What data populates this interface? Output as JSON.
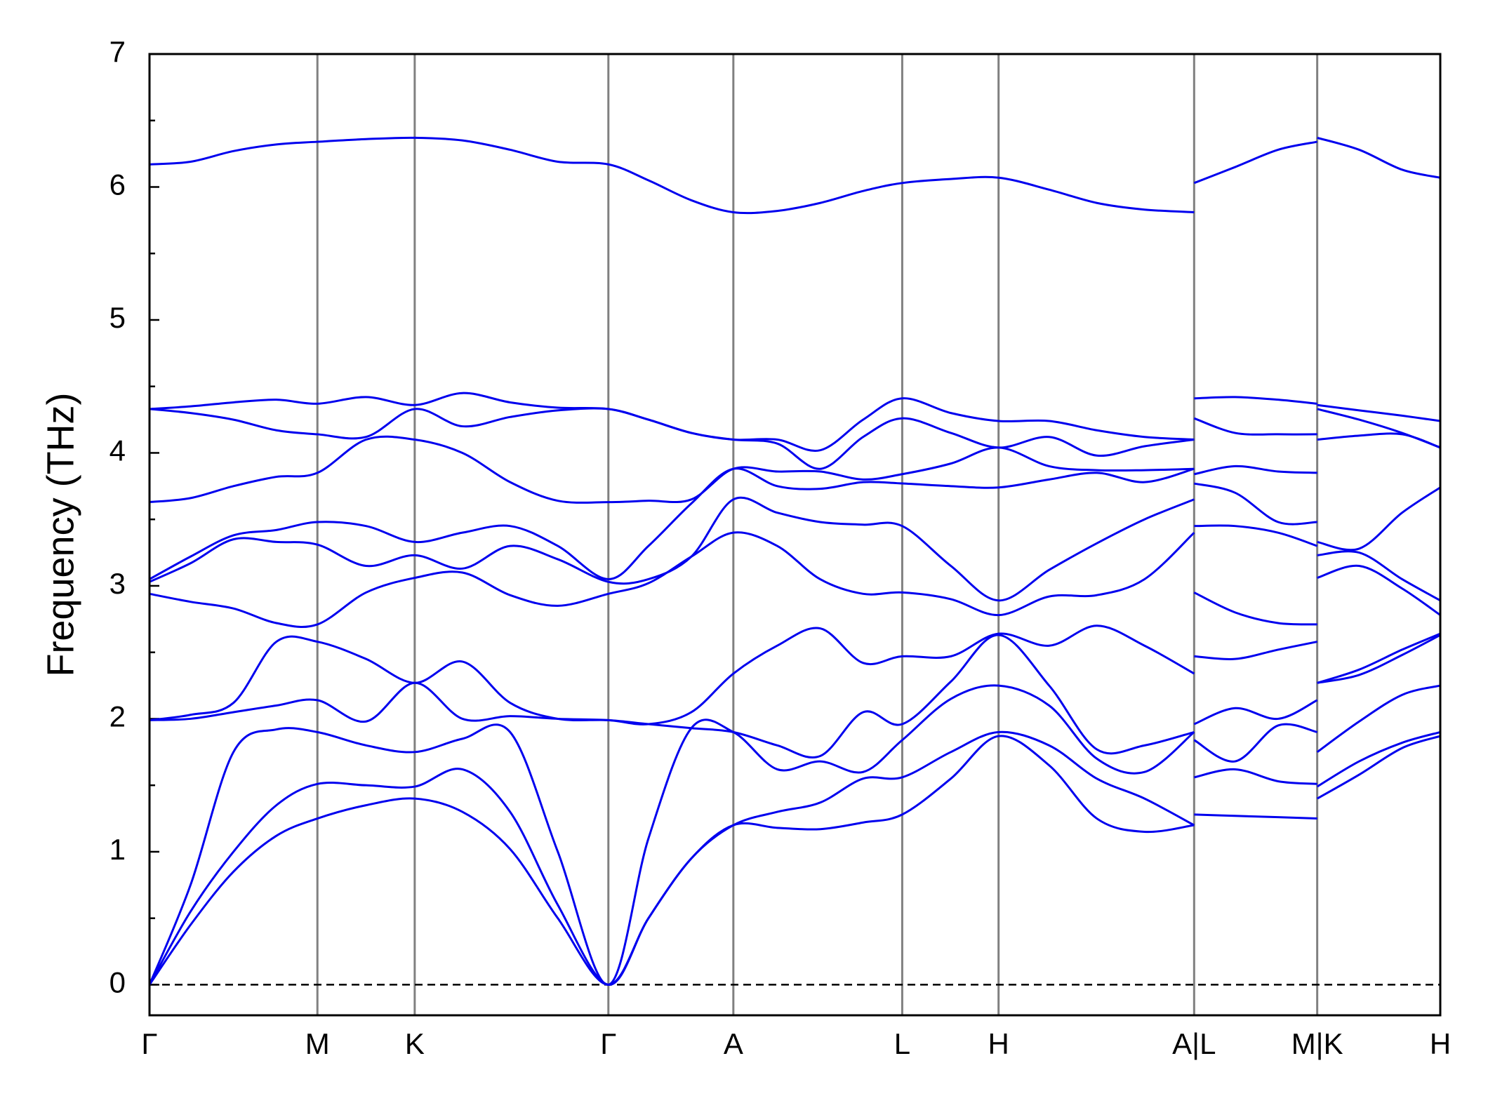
{
  "chart_data": {
    "type": "line",
    "ylabel": "Frequency (THz)",
    "ylim": [
      -0.23,
      7
    ],
    "yticks": [
      0,
      1,
      2,
      3,
      4,
      5,
      6,
      7
    ],
    "yminorticks": [
      0.5,
      1.5,
      2.5,
      3.5,
      4.5,
      5.5,
      6.5
    ],
    "xlim": [
      0,
      13.53
    ],
    "xticks": [
      {
        "value": 0,
        "label": "Γ"
      },
      {
        "value": 1.76,
        "label": "M"
      },
      {
        "value": 2.78,
        "label": "K"
      },
      {
        "value": 4.81,
        "label": "Γ"
      },
      {
        "value": 6.12,
        "label": "A"
      },
      {
        "value": 7.89,
        "label": "L"
      },
      {
        "value": 8.9,
        "label": "H"
      },
      {
        "value": 10.95,
        "label": "A|L"
      },
      {
        "value": 12.24,
        "label": "M|K"
      },
      {
        "value": 13.53,
        "label": "H"
      }
    ],
    "grid": true,
    "grid_color": "#808080",
    "reference_line": 0,
    "x": [
      0,
      0.43,
      0.88,
      1.33,
      1.76,
      2.27,
      2.78,
      3.28,
      3.78,
      4.28,
      4.81,
      5.23,
      5.68,
      6.12,
      6.58,
      7.03,
      7.48,
      7.89,
      8.4,
      8.9,
      9.43,
      9.93,
      10.43,
      10.95,
      10.95,
      10.95,
      11.38,
      11.83,
      12.24,
      12.24,
      12.24,
      12.68,
      13.13,
      13.53
    ],
    "series": [
      {
        "color": "#0000ee",
        "values": [
          0,
          0.45,
          0.85,
          1.12,
          1.25,
          1.35,
          1.4,
          1.3,
          1.02,
          0.5,
          0,
          0.5,
          0.95,
          1.2,
          1.18,
          1.17,
          1.22,
          1.28,
          1.55,
          1.87,
          1.65,
          1.25,
          1.15,
          1.2,
          null,
          1.28,
          1.27,
          1.26,
          1.25,
          null,
          1.4,
          1.58,
          1.78,
          1.87
        ]
      },
      {
        "color": "#0000ee",
        "values": [
          0,
          0.55,
          1.0,
          1.35,
          1.51,
          1.5,
          1.49,
          1.62,
          1.3,
          0.6,
          0,
          0.5,
          0.95,
          1.2,
          1.3,
          1.37,
          1.55,
          1.56,
          1.75,
          1.9,
          1.8,
          1.55,
          1.4,
          1.2,
          null,
          1.56,
          1.62,
          1.53,
          1.51,
          null,
          1.49,
          1.68,
          1.82,
          1.9
        ]
      },
      {
        "color": "#0000ee",
        "values": [
          0,
          0.75,
          1.75,
          1.92,
          1.9,
          1.8,
          1.75,
          1.85,
          1.9,
          1.0,
          0,
          1.1,
          1.93,
          1.9,
          1.62,
          1.68,
          1.6,
          1.84,
          2.15,
          2.25,
          2.1,
          1.7,
          1.6,
          1.9,
          null,
          1.84,
          1.68,
          1.95,
          1.9,
          null,
          1.75,
          1.98,
          2.18,
          2.25
        ]
      },
      {
        "color": "#0000ee",
        "values": [
          1.99,
          2.0,
          2.05,
          2.1,
          2.14,
          1.98,
          2.27,
          2.0,
          2.02,
          2.0,
          1.99,
          1.96,
          1.93,
          1.9,
          1.8,
          1.72,
          2.05,
          1.96,
          2.28,
          2.63,
          2.25,
          1.77,
          1.8,
          1.9,
          null,
          1.96,
          2.08,
          2.0,
          2.14,
          null,
          2.27,
          2.33,
          2.48,
          2.63
        ]
      },
      {
        "color": "#0000ee",
        "values": [
          1.99,
          2.03,
          2.12,
          2.58,
          2.58,
          2.45,
          2.27,
          2.43,
          2.12,
          2.0,
          1.99,
          1.96,
          2.05,
          2.34,
          2.55,
          2.68,
          2.42,
          2.47,
          2.47,
          2.64,
          2.55,
          2.7,
          2.55,
          2.34,
          null,
          2.47,
          2.45,
          2.52,
          2.58,
          null,
          2.27,
          2.37,
          2.52,
          2.64
        ]
      },
      {
        "color": "#0000ee",
        "values": [
          2.94,
          2.88,
          2.83,
          2.72,
          2.71,
          2.95,
          3.06,
          3.1,
          2.93,
          2.85,
          2.94,
          3.02,
          3.22,
          3.4,
          3.3,
          3.05,
          2.94,
          2.95,
          2.9,
          2.78,
          2.92,
          2.93,
          3.05,
          3.4,
          null,
          2.95,
          2.8,
          2.72,
          2.71,
          null,
          3.06,
          3.15,
          2.98,
          2.78
        ]
      },
      {
        "color": "#0000ee",
        "values": [
          3.03,
          3.17,
          3.35,
          3.33,
          3.31,
          3.15,
          3.23,
          3.13,
          3.3,
          3.2,
          3.03,
          3.05,
          3.22,
          3.65,
          3.55,
          3.48,
          3.46,
          3.45,
          3.15,
          2.89,
          3.12,
          3.32,
          3.5,
          3.65,
          null,
          3.45,
          3.45,
          3.4,
          3.3,
          null,
          3.23,
          3.25,
          3.05,
          2.89
        ]
      },
      {
        "color": "#0000ee",
        "values": [
          3.05,
          3.22,
          3.38,
          3.42,
          3.48,
          3.45,
          3.33,
          3.4,
          3.45,
          3.3,
          3.05,
          3.3,
          3.62,
          3.88,
          3.75,
          3.73,
          3.78,
          3.77,
          3.75,
          3.74,
          3.8,
          3.85,
          3.78,
          3.88,
          null,
          3.77,
          3.7,
          3.48,
          3.48,
          null,
          3.33,
          3.28,
          3.55,
          3.74
        ]
      },
      {
        "color": "#0000ee",
        "values": [
          3.63,
          3.66,
          3.75,
          3.82,
          3.85,
          4.1,
          4.1,
          4.0,
          3.78,
          3.64,
          3.63,
          3.64,
          3.65,
          3.88,
          3.86,
          3.86,
          3.8,
          3.84,
          3.92,
          4.04,
          3.9,
          3.87,
          3.87,
          3.88,
          null,
          3.84,
          3.9,
          3.86,
          3.85,
          null,
          4.1,
          4.13,
          4.14,
          4.04
        ]
      },
      {
        "color": "#0000ee",
        "values": [
          4.33,
          4.3,
          4.25,
          4.17,
          4.14,
          4.12,
          4.33,
          4.2,
          4.27,
          4.32,
          4.33,
          4.25,
          4.15,
          4.1,
          4.07,
          3.88,
          4.12,
          4.26,
          4.15,
          4.04,
          4.12,
          3.98,
          4.05,
          4.1,
          null,
          4.26,
          4.15,
          4.14,
          4.14,
          null,
          4.33,
          4.25,
          4.15,
          4.04
        ]
      },
      {
        "color": "#0000ee",
        "values": [
          4.33,
          4.35,
          4.38,
          4.4,
          4.37,
          4.42,
          4.36,
          4.45,
          4.38,
          4.34,
          4.33,
          4.25,
          4.15,
          4.1,
          4.1,
          4.02,
          4.25,
          4.41,
          4.3,
          4.24,
          4.24,
          4.17,
          4.12,
          4.1,
          null,
          4.41,
          4.42,
          4.4,
          4.37,
          null,
          4.36,
          4.32,
          4.28,
          4.24
        ]
      },
      {
        "color": "#0000ee",
        "values": [
          6.17,
          6.19,
          6.27,
          6.32,
          6.34,
          6.36,
          6.37,
          6.35,
          6.28,
          6.19,
          6.17,
          6.05,
          5.9,
          5.81,
          5.82,
          5.88,
          5.97,
          6.03,
          6.06,
          6.07,
          5.98,
          5.88,
          5.83,
          5.81,
          null,
          6.03,
          6.15,
          6.28,
          6.34,
          null,
          6.37,
          6.28,
          6.13,
          6.07
        ]
      }
    ]
  }
}
